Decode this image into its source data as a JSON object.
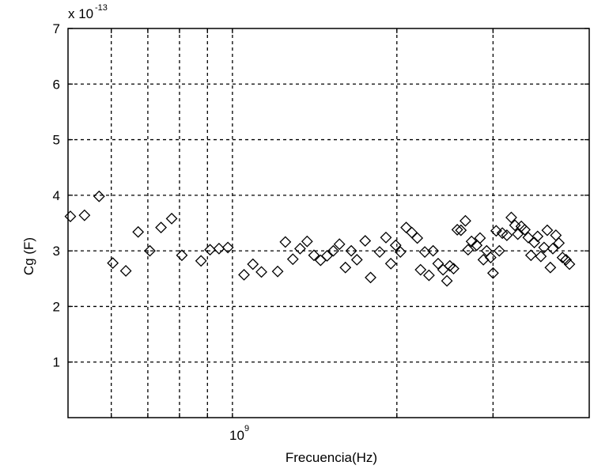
{
  "chart_data": {
    "type": "scatter",
    "xlabel": "Frecuencia(Hz)",
    "ylabel": "Cg (F)",
    "x_scale": "log",
    "xlim": [
      500000000,
      4500000000
    ],
    "ylim": [
      0,
      7
    ],
    "y_multiplier": "x 10",
    "y_multiplier_exp": "-13",
    "y_ticks": [
      "1",
      "2",
      "3",
      "4",
      "5",
      "6",
      "7"
    ],
    "x_tick_base": "10",
    "x_tick_exp": "9",
    "x_gridlines": [
      600000000,
      700000000,
      800000000,
      900000000,
      1000000000,
      2000000000,
      3000000000
    ],
    "grid": true,
    "marker": "diamond",
    "points": [
      [
        505000000.0,
        3.62
      ],
      [
        536000000.0,
        3.64
      ],
      [
        570000000.0,
        3.98
      ],
      [
        604000000.0,
        2.78
      ],
      [
        638000000.0,
        2.64
      ],
      [
        672000000.0,
        3.34
      ],
      [
        706000000.0,
        3.0
      ],
      [
        740000000.0,
        3.42
      ],
      [
        774000000.0,
        3.58
      ],
      [
        808000000.0,
        2.92
      ],
      [
        876000000.0,
        2.82
      ],
      [
        910000000.0,
        3.02
      ],
      [
        945000000.0,
        3.04
      ],
      [
        981000000.0,
        3.06
      ],
      [
        1050000000.0,
        2.57
      ],
      [
        1090000000.0,
        2.76
      ],
      [
        1130000000.0,
        2.62
      ],
      [
        1210000000.0,
        2.63
      ],
      [
        1250000000.0,
        3.16
      ],
      [
        1290000000.0,
        2.85
      ],
      [
        1330000000.0,
        3.04
      ],
      [
        1370000000.0,
        3.17
      ],
      [
        1410000000.0,
        2.92
      ],
      [
        1450000000.0,
        2.83
      ],
      [
        1490000000.0,
        2.91
      ],
      [
        1530000000.0,
        3.0
      ],
      [
        1570000000.0,
        3.12
      ],
      [
        1610000000.0,
        2.7
      ],
      [
        1650000000.0,
        3.0
      ],
      [
        1690000000.0,
        2.84
      ],
      [
        1750000000.0,
        3.18
      ],
      [
        1790000000.0,
        2.52
      ],
      [
        1860000000.0,
        2.98
      ],
      [
        1910000000.0,
        3.24
      ],
      [
        1950000000.0,
        2.77
      ],
      [
        1990000000.0,
        3.1
      ],
      [
        2030000000.0,
        2.98
      ],
      [
        2080000000.0,
        3.42
      ],
      [
        2130000000.0,
        3.33
      ],
      [
        2180000000.0,
        3.23
      ],
      [
        2210000000.0,
        2.66
      ],
      [
        2250000000.0,
        2.98
      ],
      [
        2290000000.0,
        2.56
      ],
      [
        2330000000.0,
        3.0
      ],
      [
        2380000000.0,
        2.77
      ],
      [
        2430000000.0,
        2.66
      ],
      [
        2470000000.0,
        2.46
      ],
      [
        2500000000.0,
        2.73
      ],
      [
        2540000000.0,
        2.68
      ],
      [
        2580000000.0,
        3.38
      ],
      [
        2620000000.0,
        3.37
      ],
      [
        2670000000.0,
        3.54
      ],
      [
        2700000000.0,
        3.02
      ],
      [
        2740000000.0,
        3.17
      ],
      [
        2800000000.0,
        3.1
      ],
      [
        2840000000.0,
        3.23
      ],
      [
        2880000000.0,
        2.84
      ],
      [
        2920000000.0,
        3.0
      ],
      [
        2970000000.0,
        2.88
      ],
      [
        3000000000.0,
        2.6
      ],
      [
        3040000000.0,
        3.36
      ],
      [
        3080000000.0,
        3.0
      ],
      [
        3120000000.0,
        3.32
      ],
      [
        3180000000.0,
        3.28
      ],
      [
        3240000000.0,
        3.6
      ],
      [
        3290000000.0,
        3.46
      ],
      [
        3330000000.0,
        3.3
      ],
      [
        3380000000.0,
        3.44
      ],
      [
        3430000000.0,
        3.38
      ],
      [
        3480000000.0,
        3.24
      ],
      [
        3520000000.0,
        2.92
      ],
      [
        3570000000.0,
        3.15
      ],
      [
        3620000000.0,
        3.26
      ],
      [
        3670000000.0,
        2.9
      ],
      [
        3720000000.0,
        3.06
      ],
      [
        3770000000.0,
        3.37
      ],
      [
        3820000000.0,
        2.7
      ],
      [
        3860000000.0,
        3.04
      ],
      [
        3910000000.0,
        3.28
      ],
      [
        3960000000.0,
        3.14
      ],
      [
        4020000000.0,
        2.88
      ],
      [
        4080000000.0,
        2.84
      ],
      [
        4140000000.0,
        2.76
      ]
    ]
  }
}
